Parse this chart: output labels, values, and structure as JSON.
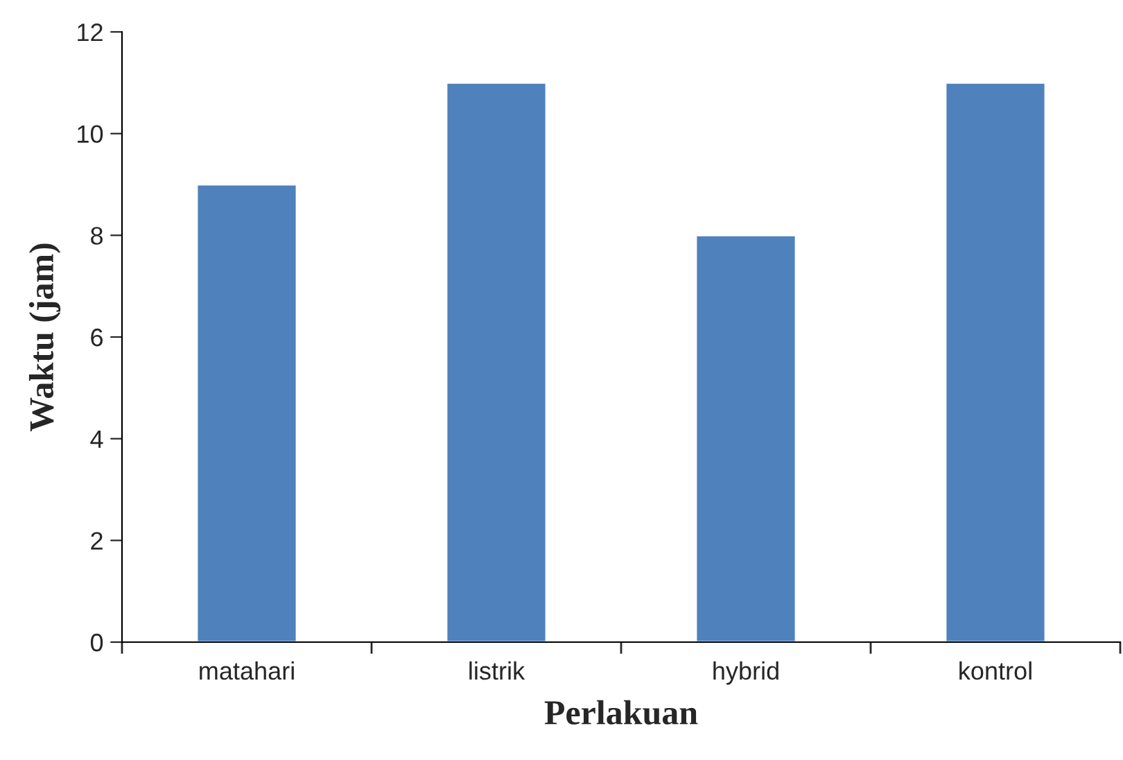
{
  "chart_data": {
    "type": "bar",
    "xlabel": "Perlakuan",
    "ylabel": "Waktu (jam)",
    "categories": [
      "matahari",
      "listrik",
      "hybrid",
      "kontrol"
    ],
    "values": [
      9,
      11,
      8,
      11
    ],
    "color": "#4f81bd",
    "ylim": [
      0,
      12
    ],
    "yticks": [
      0,
      2,
      4,
      6,
      8,
      10,
      12
    ],
    "grid": false,
    "legend": false
  }
}
